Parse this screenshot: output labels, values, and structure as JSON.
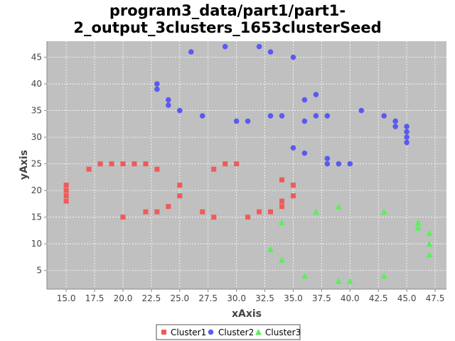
{
  "chart_data": {
    "type": "scatter",
    "title_lines": [
      "program3_data/part1/part1-",
      "2_output_3clusters_1653clusterSeed"
    ],
    "xlabel": "xAxis",
    "ylabel": "yAxis",
    "xlim": [
      13.3,
      48.5
    ],
    "ylim": [
      1.5,
      48.0
    ],
    "xticks": [
      15.0,
      17.5,
      20.0,
      22.5,
      25.0,
      27.5,
      30.0,
      32.5,
      35.0,
      37.5,
      40.0,
      42.5,
      45.0,
      47.5
    ],
    "xtick_labels": [
      "15.0",
      "17.5",
      "20.0",
      "22.5",
      "25.0",
      "27.5",
      "30.0",
      "32.5",
      "35.0",
      "37.5",
      "40.0",
      "42.5",
      "45.0",
      "47.5"
    ],
    "yticks": [
      5,
      10,
      15,
      20,
      25,
      30,
      35,
      40,
      45
    ],
    "ytick_labels": [
      "5",
      "10",
      "15",
      "20",
      "25",
      "30",
      "35",
      "40",
      "45"
    ],
    "grid": true,
    "legend_position": "bottom-center",
    "series": [
      {
        "name": "Cluster1",
        "marker": "square",
        "color": "#f05a5a",
        "points": [
          [
            15,
            21
          ],
          [
            15,
            20
          ],
          [
            15,
            19
          ],
          [
            15,
            18
          ],
          [
            17,
            24
          ],
          [
            18,
            25
          ],
          [
            19,
            25
          ],
          [
            20,
            25
          ],
          [
            21,
            25
          ],
          [
            22,
            25
          ],
          [
            23,
            24
          ],
          [
            20,
            15
          ],
          [
            22,
            16
          ],
          [
            23,
            16
          ],
          [
            24,
            17
          ],
          [
            25,
            21
          ],
          [
            25,
            19
          ],
          [
            27,
            16
          ],
          [
            28,
            15
          ],
          [
            28,
            24
          ],
          [
            29,
            25
          ],
          [
            30,
            25
          ],
          [
            31,
            15
          ],
          [
            32,
            16
          ],
          [
            33,
            16
          ],
          [
            34,
            22
          ],
          [
            34,
            18
          ],
          [
            34,
            17
          ],
          [
            35,
            21
          ],
          [
            35,
            19
          ]
        ]
      },
      {
        "name": "Cluster2",
        "marker": "circle",
        "color": "#5a5af0",
        "points": [
          [
            23,
            40
          ],
          [
            23,
            39
          ],
          [
            24,
            37
          ],
          [
            24,
            36
          ],
          [
            25,
            35
          ],
          [
            26,
            46
          ],
          [
            27,
            34
          ],
          [
            29,
            47
          ],
          [
            30,
            33
          ],
          [
            31,
            33
          ],
          [
            32,
            47
          ],
          [
            33,
            46
          ],
          [
            33,
            34
          ],
          [
            34,
            34
          ],
          [
            35,
            45
          ],
          [
            35,
            28
          ],
          [
            36,
            37
          ],
          [
            36,
            33
          ],
          [
            36,
            27
          ],
          [
            37,
            38
          ],
          [
            37,
            34
          ],
          [
            38,
            34
          ],
          [
            38,
            26
          ],
          [
            38,
            25
          ],
          [
            39,
            25
          ],
          [
            40,
            25
          ],
          [
            41,
            35
          ],
          [
            43,
            34
          ],
          [
            44,
            33
          ],
          [
            44,
            32
          ],
          [
            45,
            32
          ],
          [
            45,
            31
          ],
          [
            45,
            30
          ],
          [
            45,
            29
          ]
        ]
      },
      {
        "name": "Cluster3",
        "marker": "triangle",
        "color": "#5af05a",
        "points": [
          [
            33,
            9
          ],
          [
            34,
            14
          ],
          [
            34,
            7
          ],
          [
            36,
            4
          ],
          [
            37,
            16
          ],
          [
            39,
            17
          ],
          [
            39,
            3
          ],
          [
            40,
            3
          ],
          [
            43,
            16
          ],
          [
            43,
            4
          ],
          [
            46,
            14
          ],
          [
            46,
            13
          ],
          [
            47,
            12
          ],
          [
            47,
            10
          ],
          [
            47,
            8
          ]
        ]
      }
    ]
  }
}
